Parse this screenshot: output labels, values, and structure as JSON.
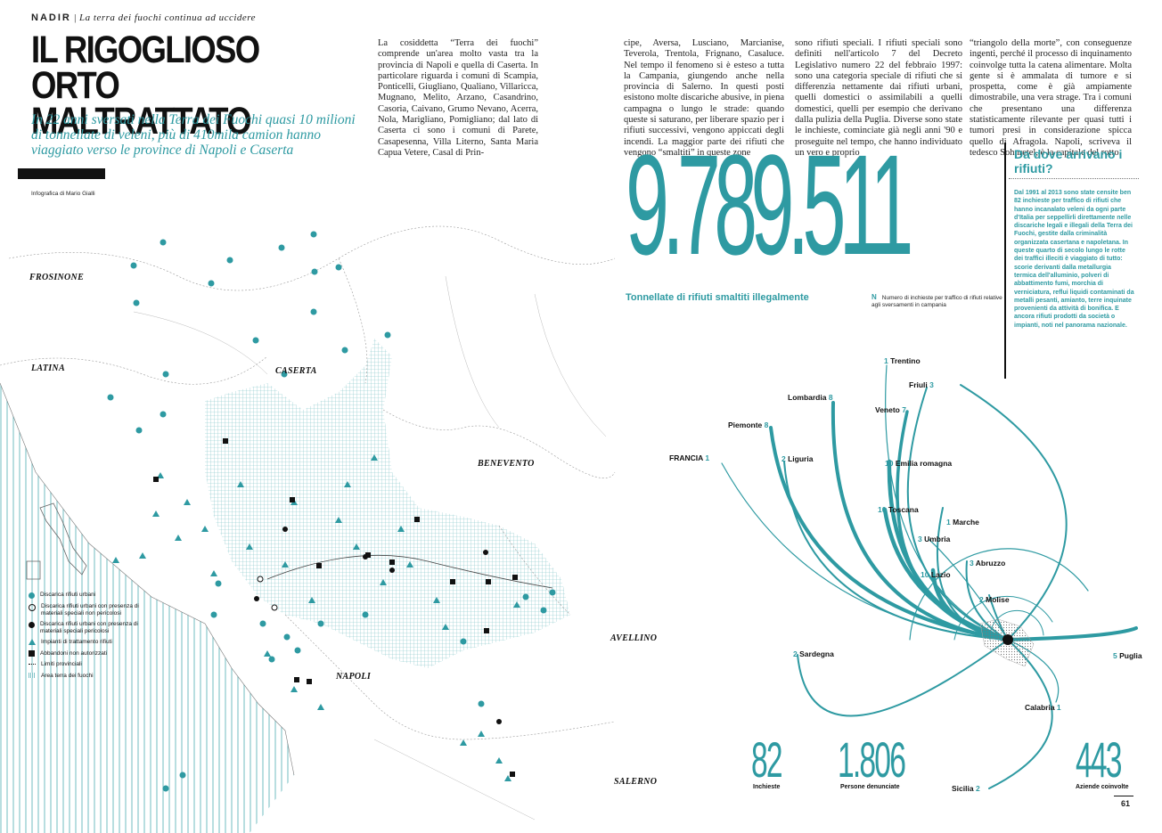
{
  "header": {
    "section": "NADIR",
    "kicker": "La terra dei fuochi continua ad uccidere"
  },
  "title": {
    "line1": "IL RIGOGLIOSO ORTO",
    "line2": "MALTRATTATO"
  },
  "subtitle": "In 22 anni sversati nella Terra dei Fuochi quasi 10 milioni di tonnellate di veleni, più di 410mila camion hanno viaggiato verso le province di Napoli e Caserta",
  "credit": "Infografica di Mario Gialli",
  "columns": [
    "La cosiddetta “Terra dei fuochi” comprende un'area molto vasta tra la provincia di Napoli e quella di Caserta. In particolare riguarda i comuni di Scampia, Ponticelli, Giugliano, Qualiano, Villaricca, Mugnano, Melito, Arzano, Casandrino, Casoria, Caivano, Grumo Nevano, Acerra, Nola, Marigliano, Pomigliano; dal lato di Caserta ci sono i comuni di Parete, Casapesenna, Villa Literno, Santa Maria Capua Vetere, Casal di Prin-",
    "cipe, Aversa, Lusciano, Marcianise, Teverola, Trentola, Frignano, Casaluce. Nel tempo il fenomeno si è esteso a tutta la Campania, giungendo anche nella provincia di Salerno. In questi posti esistono molte discariche abusive, in piena campagna o lungo le strade: quando queste si saturano, per liberare spazio per i rifiuti successivi, vengono appiccati degli incendi. La maggior parte dei rifiuti che vengono “smaltiti” in queste zone",
    "sono rifiuti speciali. I rifiuti speciali sono definiti nell'articolo 7 del Decreto Legislativo numero 22 del febbraio 1997: sono una categoria speciale di rifiuti che si differenzia nettamente dai rifiuti urbani, quelli domestici o assimilabili a quelli domestici, quelli per esempio che derivano dalla pulizia della Puglia. Diverse sono state le inchieste, cominciate già negli anni '90 e proseguite nel tempo, che hanno individuato un vero e proprio",
    "“triangolo della morte”, con conseguenze ingenti, perché il processo di inquinamento coinvolge tutta la catena alimentare. Molta gente si è ammalata di tumore e si prospetta, come è già ampiamente dimostrabile, una vera strage. Tra i comuni che presentano una differenza statisticamente rilevante per quasi tutti i tumori presi in considerazione spicca quello di Afragola. Napoli, scriveva il tedesco Sohnretel, è la capitale del rotto."
  ],
  "big_number": {
    "value": "9.789.511",
    "caption": "Tonnellate di rifiuti smaltiti illegalmente"
  },
  "n_note": {
    "symbol": "N",
    "text": "Numero di inchieste per traffico di rifiuti relative agli sversamenti in campania"
  },
  "sidebar": {
    "title": "Da dove arrivano i rifiuti?",
    "text": "Dal 1991 al 2013 sono state censite ben 82 inchieste per traffico di rifiuti che hanno incanalato veleni da ogni parte d'Italia per seppellirli direttamente nelle discariche legali e illegali della Terra dei Fuochi, gestite dalla criminalità organizzata casertana e napoletana. In queste quarto di secolo lungo le rotte dei traffici illeciti è viaggiato di tutto: scorie derivanti dalla metallurgia termica dell'alluminio, polveri di abbattimento fumi, morchia di verniciatura, reflui liquidi contaminati da metalli pesanti, amianto, terre inquinate provenienti da attività di bonifica. E ancora rifiuti prodotti da società o impianti, noti nel panorama nazionale."
  },
  "stats": [
    {
      "value": "82",
      "label": "Inchieste"
    },
    {
      "value": "1.806",
      "label": "Persone denunciate"
    },
    {
      "value": "443",
      "label": "Aziende coinvolte"
    }
  ],
  "page_number": "61",
  "map_labels": [
    "FROSINONE",
    "LATINA",
    "CASERTA",
    "BENEVENTO",
    "AVELLINO",
    "NAPOLI",
    "SALERNO"
  ],
  "legend": [
    {
      "label": "Discarica rifiuti urbani",
      "symbol": "teal-dot"
    },
    {
      "label": "Discarica rifiuti urbani con presenza di materiali speciali non pericolosi",
      "symbol": "open-circle"
    },
    {
      "label": "Discarica rifiuti urbani con presenza di materiali speciali pericolosi",
      "symbol": "black-dot"
    },
    {
      "label": "Impianti di trattamento rifiuti",
      "symbol": "teal-triangle"
    },
    {
      "label": "Abbandoni non autorizzati",
      "symbol": "black-square"
    },
    {
      "label": "Limiti provinciali",
      "symbol": "dotted-line"
    },
    {
      "label": "Area terra dei fuochi",
      "symbol": "hatch"
    }
  ],
  "regions": [
    {
      "name": "Trentino",
      "n": "1"
    },
    {
      "name": "Friuli",
      "n": "3"
    },
    {
      "name": "Lombardia",
      "n": "8"
    },
    {
      "name": "Veneto",
      "n": "7"
    },
    {
      "name": "Piemonte",
      "n": "8"
    },
    {
      "name": "Liguria",
      "n": "2"
    },
    {
      "name": "FRANCIA",
      "n": "1"
    },
    {
      "name": "Emilia romagna",
      "n": "10"
    },
    {
      "name": "Toscana",
      "n": "10"
    },
    {
      "name": "Marche",
      "n": "1"
    },
    {
      "name": "Umbria",
      "n": "3"
    },
    {
      "name": "Abruzzo",
      "n": "3"
    },
    {
      "name": "Lazio",
      "n": "10"
    },
    {
      "name": "Molise",
      "n": "2"
    },
    {
      "name": "Sardegna",
      "n": "2"
    },
    {
      "name": "Puglia",
      "n": "5"
    },
    {
      "name": "Calabria",
      "n": "1"
    },
    {
      "name": "Sicilia",
      "n": "2"
    }
  ],
  "colors": {
    "accent": "#2e9aa2",
    "ink": "#111111"
  }
}
